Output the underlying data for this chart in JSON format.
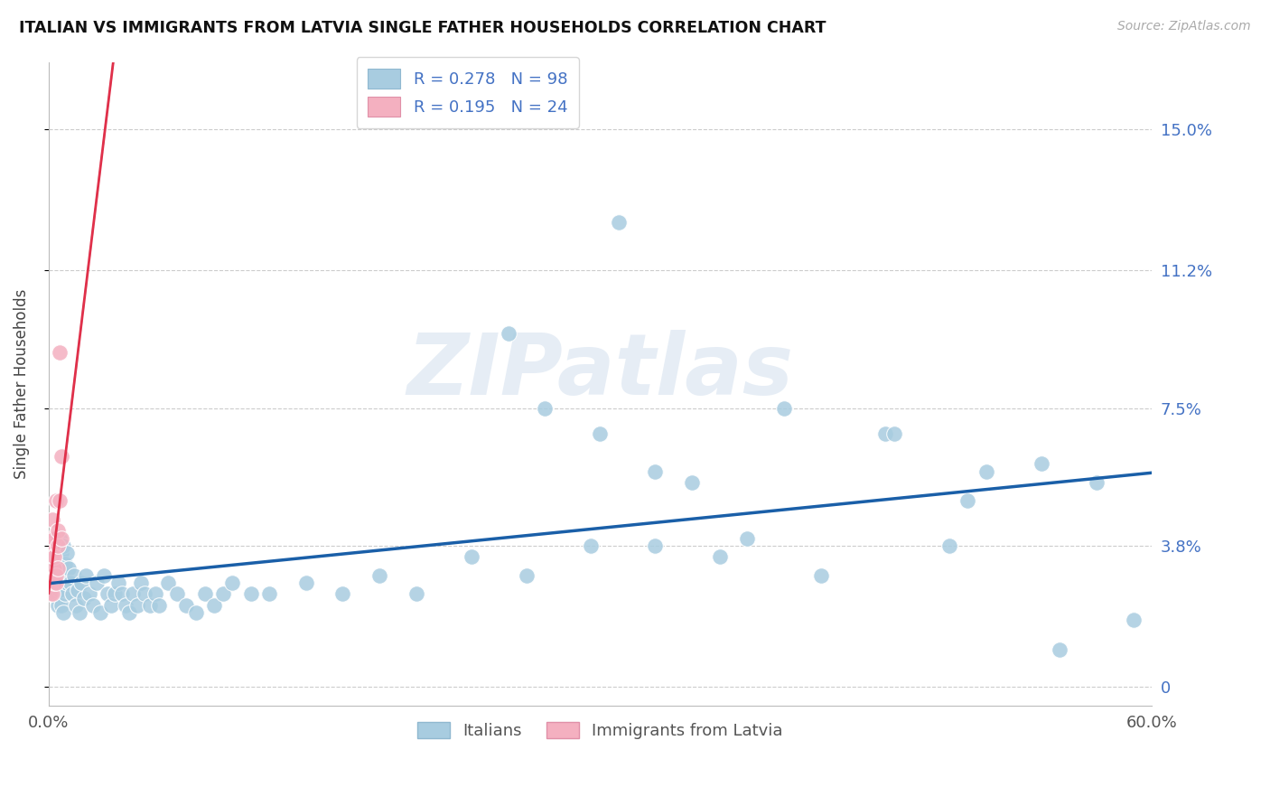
{
  "title": "ITALIAN VS IMMIGRANTS FROM LATVIA SINGLE FATHER HOUSEHOLDS CORRELATION CHART",
  "source": "Source: ZipAtlas.com",
  "series1_label": "Italians",
  "series2_label": "Immigrants from Latvia",
  "ylabel": "Single Father Households",
  "xlim": [
    0,
    0.6
  ],
  "ylim": [
    -0.005,
    0.168
  ],
  "yticks": [
    0.0,
    0.038,
    0.075,
    0.112,
    0.15
  ],
  "ytick_labels": [
    "0",
    "3.8%",
    "7.5%",
    "11.2%",
    "15.0%"
  ],
  "xticks": [
    0.0,
    0.1,
    0.2,
    0.3,
    0.4,
    0.5,
    0.6
  ],
  "xtick_labels": [
    "0.0%",
    "",
    "",
    "",
    "",
    "",
    "60.0%"
  ],
  "legend_r1": "R = 0.278",
  "legend_n1": "N = 98",
  "legend_r2": "R = 0.195",
  "legend_n2": "N = 24",
  "blue_scatter_color": "#a8cce0",
  "pink_scatter_color": "#f4b0c0",
  "line_blue_color": "#1a5fa8",
  "line_pink_color": "#e0304a",
  "line_gray_color": "#c0c0c8",
  "italians_x": [
    0.001,
    0.001,
    0.001,
    0.002,
    0.002,
    0.002,
    0.002,
    0.003,
    0.003,
    0.003,
    0.003,
    0.004,
    0.004,
    0.004,
    0.004,
    0.005,
    0.005,
    0.005,
    0.005,
    0.006,
    0.006,
    0.006,
    0.007,
    0.007,
    0.007,
    0.008,
    0.008,
    0.008,
    0.009,
    0.009,
    0.01,
    0.01,
    0.011,
    0.012,
    0.013,
    0.014,
    0.015,
    0.016,
    0.017,
    0.018,
    0.019,
    0.02,
    0.022,
    0.024,
    0.026,
    0.028,
    0.03,
    0.032,
    0.034,
    0.036,
    0.038,
    0.04,
    0.042,
    0.044,
    0.046,
    0.048,
    0.05,
    0.052,
    0.055,
    0.058,
    0.06,
    0.065,
    0.07,
    0.075,
    0.08,
    0.085,
    0.09,
    0.095,
    0.1,
    0.11,
    0.12,
    0.14,
    0.16,
    0.18,
    0.2,
    0.23,
    0.26,
    0.295,
    0.33,
    0.365,
    0.3,
    0.35,
    0.4,
    0.455,
    0.49,
    0.51,
    0.54,
    0.57,
    0.25,
    0.31,
    0.38,
    0.42,
    0.46,
    0.5,
    0.55,
    0.59,
    0.27,
    0.33
  ],
  "italians_y": [
    0.038,
    0.032,
    0.036,
    0.034,
    0.028,
    0.03,
    0.04,
    0.035,
    0.025,
    0.032,
    0.038,
    0.033,
    0.027,
    0.036,
    0.025,
    0.034,
    0.03,
    0.038,
    0.022,
    0.032,
    0.026,
    0.04,
    0.034,
    0.022,
    0.036,
    0.03,
    0.02,
    0.038,
    0.025,
    0.033,
    0.028,
    0.036,
    0.032,
    0.028,
    0.025,
    0.03,
    0.022,
    0.026,
    0.02,
    0.028,
    0.024,
    0.03,
    0.025,
    0.022,
    0.028,
    0.02,
    0.03,
    0.025,
    0.022,
    0.025,
    0.028,
    0.025,
    0.022,
    0.02,
    0.025,
    0.022,
    0.028,
    0.025,
    0.022,
    0.025,
    0.022,
    0.028,
    0.025,
    0.022,
    0.02,
    0.025,
    0.022,
    0.025,
    0.028,
    0.025,
    0.025,
    0.028,
    0.025,
    0.03,
    0.025,
    0.035,
    0.03,
    0.038,
    0.038,
    0.035,
    0.068,
    0.055,
    0.075,
    0.068,
    0.038,
    0.058,
    0.06,
    0.055,
    0.095,
    0.125,
    0.04,
    0.03,
    0.068,
    0.05,
    0.01,
    0.018,
    0.075,
    0.058
  ],
  "latvia_x": [
    0.001,
    0.001,
    0.001,
    0.001,
    0.001,
    0.002,
    0.002,
    0.002,
    0.002,
    0.002,
    0.003,
    0.003,
    0.003,
    0.003,
    0.004,
    0.004,
    0.004,
    0.005,
    0.005,
    0.005,
    0.006,
    0.006,
    0.007,
    0.007
  ],
  "latvia_y": [
    0.032,
    0.028,
    0.036,
    0.025,
    0.04,
    0.038,
    0.03,
    0.035,
    0.025,
    0.045,
    0.032,
    0.028,
    0.04,
    0.035,
    0.028,
    0.03,
    0.05,
    0.038,
    0.032,
    0.042,
    0.09,
    0.05,
    0.062,
    0.04
  ],
  "watermark_text": "ZIPatlas"
}
